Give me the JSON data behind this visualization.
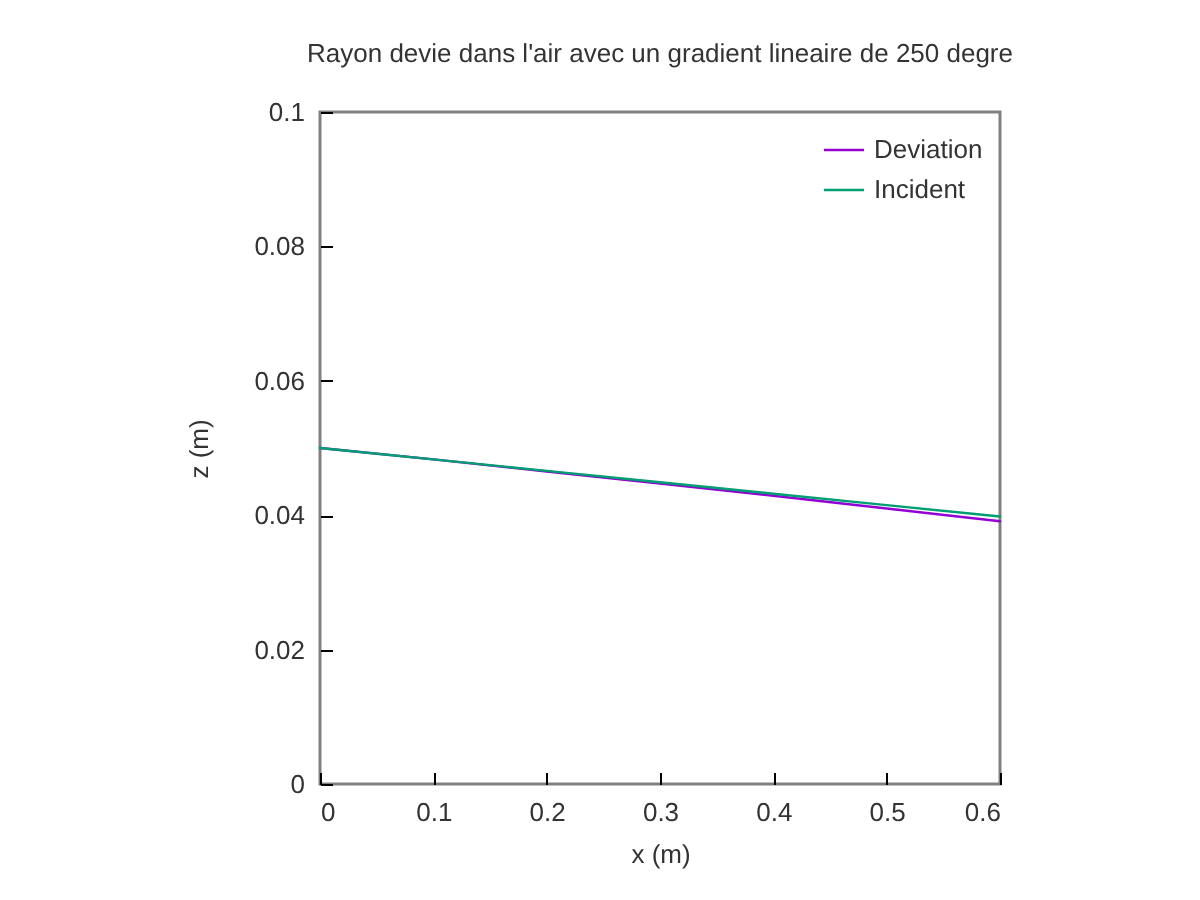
{
  "chart_data": {
    "type": "line",
    "title": "Rayon devie dans l'air avec un gradient lineaire de 250 degre",
    "xlabel": "x (m)",
    "ylabel": "z (m)",
    "x": [
      0,
      0.1,
      0.2,
      0.3,
      0.4,
      0.5,
      0.6
    ],
    "series": [
      {
        "name": "Deviation",
        "color": "#9400d3",
        "values": [
          0.05,
          0.0483,
          0.0465,
          0.0447,
          0.0429,
          0.041,
          0.0391
        ]
      },
      {
        "name": "Incident",
        "color": "#009e73",
        "values": [
          0.05,
          0.0483,
          0.0466,
          0.0449,
          0.0432,
          0.0415,
          0.0398
        ]
      }
    ],
    "xlim": [
      0,
      0.6
    ],
    "xticks": [
      0,
      0.1,
      0.2,
      0.3,
      0.4,
      0.5,
      0.6
    ],
    "ylim": [
      0,
      0.1
    ],
    "yticks": [
      0,
      0.02,
      0.04,
      0.06,
      0.08,
      0.1
    ],
    "legend": "top right"
  }
}
